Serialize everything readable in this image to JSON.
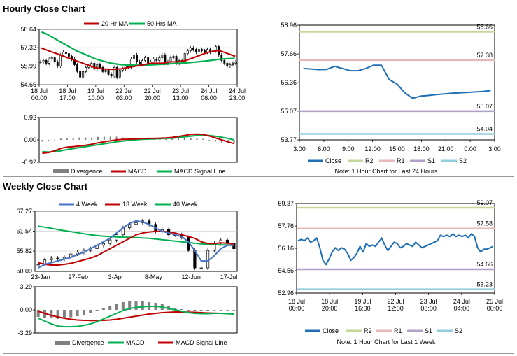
{
  "hourly": {
    "title": "Hourly Close Chart"
  },
  "weekly": {
    "title": "Weekly Close Chart"
  },
  "colors": {
    "ma20": "#c00000",
    "ma50": "#00b050",
    "w4": "#4472c4",
    "close": "#1f6fb5",
    "r2": "#c4d79b",
    "r1": "#e6b8b7",
    "s1": "#b1a0c7",
    "s2": "#92cddc",
    "div": "#808080"
  },
  "chart_data": [
    {
      "id": "hourly_main",
      "type": "candlestick",
      "legend": [
        "20 Hr MA",
        "50 Hrs MA"
      ],
      "ylim": [
        54.66,
        58.64
      ],
      "yticks": [
        "58.64",
        "57.32",
        "55.99",
        "54.66"
      ],
      "xticks": [
        [
          "18 Jul",
          "00:00"
        ],
        [
          "18 Jul",
          "17:00"
        ],
        [
          "19 Jul",
          "10:00"
        ],
        [
          "22 Jul",
          "03:00"
        ],
        [
          "22 Jul",
          "20:00"
        ],
        [
          "23 Jul",
          "13:00"
        ],
        [
          "24 Jul",
          "06:00"
        ],
        [
          "24 Jul",
          "23:00"
        ]
      ],
      "close": [
        56.3,
        56.4,
        56.2,
        56.5,
        56.6,
        56.3,
        56.0,
        56.8,
        57.0,
        56.9,
        56.7,
        56.5,
        56.1,
        55.6,
        55.2,
        55.6,
        55.9,
        56.0,
        56.2,
        55.8,
        56.1,
        55.9,
        55.6,
        55.7,
        55.4,
        55.3,
        55.9,
        55.2,
        55.7,
        55.8,
        56.0,
        55.9,
        56.5,
        56.8,
        56.3,
        56.1,
        56.4,
        56.6,
        56.2,
        56.3,
        56.5,
        56.4,
        56.6,
        56.8,
        56.2,
        56.3,
        56.6,
        56.7,
        56.2,
        56.4,
        56.3,
        56.9,
        57.1,
        57.3,
        57.2,
        57.0,
        57.2,
        57.1,
        57.0,
        57.2,
        57.0,
        57.1,
        57.4,
        56.8,
        56.4,
        56.2,
        56.0,
        56.1,
        56.2,
        56.3
      ],
      "ma20": [
        57.3,
        57.2,
        57.1,
        57.0,
        56.9,
        56.8,
        56.7,
        56.6,
        56.5,
        56.4,
        56.3,
        56.2,
        56.1,
        56.0,
        55.9,
        55.85,
        55.8,
        55.78,
        55.77,
        55.76,
        55.78,
        55.8,
        55.85,
        55.9,
        55.95,
        56.0,
        56.05,
        56.1,
        56.15,
        56.2,
        56.2,
        56.2,
        56.2,
        56.25,
        56.3,
        56.3,
        56.3,
        56.35,
        56.4,
        56.5,
        56.6,
        56.7,
        56.8,
        56.9,
        57.0,
        57.05,
        57.1,
        57.1,
        57.0,
        56.9,
        56.8,
        56.7
      ],
      "ma50": [
        58.45,
        58.3,
        58.1,
        57.9,
        57.7,
        57.5,
        57.3,
        57.1,
        56.95,
        56.8,
        56.65,
        56.5,
        56.4,
        56.3,
        56.2,
        56.15,
        56.1,
        56.08,
        56.07,
        56.06,
        56.06,
        56.07,
        56.08,
        56.1,
        56.12,
        56.14,
        56.16,
        56.18,
        56.2,
        56.22,
        56.25,
        56.28,
        56.32,
        56.36,
        56.4,
        56.45,
        56.5,
        56.52,
        56.54,
        56.55
      ]
    },
    {
      "id": "hourly_macd",
      "type": "macd",
      "legend": [
        "Divergence",
        "MACD",
        "MACD Signal Line"
      ],
      "ylim": [
        -0.92,
        0.92
      ],
      "yticks": [
        "0.92",
        "0.00",
        "-0.92"
      ],
      "macd": [
        -0.55,
        -0.52,
        -0.45,
        -0.35,
        -0.3,
        -0.28,
        -0.25,
        -0.22,
        -0.18,
        -0.12,
        -0.08,
        -0.04,
        0.0,
        0.02,
        0.03,
        0.04,
        0.05,
        0.06,
        0.06,
        0.07,
        0.08,
        0.1,
        0.14,
        0.18,
        0.22,
        0.24,
        0.22,
        0.16,
        0.08,
        0.0,
        -0.08,
        -0.15
      ],
      "signal": [
        -0.48,
        -0.5,
        -0.48,
        -0.45,
        -0.4,
        -0.36,
        -0.32,
        -0.28,
        -0.24,
        -0.2,
        -0.16,
        -0.12,
        -0.08,
        -0.05,
        -0.02,
        0.0,
        0.02,
        0.03,
        0.04,
        0.05,
        0.06,
        0.07,
        0.09,
        0.12,
        0.15,
        0.18,
        0.19,
        0.18,
        0.15,
        0.11,
        0.06,
        0.0
      ],
      "divergence": [
        -0.07,
        -0.04,
        0.01,
        0.05,
        0.08,
        0.09,
        0.1,
        0.1,
        0.1,
        0.12,
        0.13,
        0.13,
        0.13,
        0.1,
        0.07,
        0.06,
        0.05,
        0.04,
        0.03,
        0.03,
        0.03,
        0.04,
        0.06,
        0.07,
        0.08,
        0.07,
        0.04,
        -0.02,
        -0.07,
        -0.11,
        -0.14,
        -0.15
      ]
    },
    {
      "id": "hourly_levels",
      "type": "line",
      "legend": [
        "Close",
        "R2",
        "R1",
        "S1",
        "S2"
      ],
      "note": "Note: 1 Hour Chart for Last 24 Hours",
      "ylim": [
        53.77,
        58.96
      ],
      "yticks": [
        "58.96",
        "57.66",
        "56.36",
        "55.07",
        "53.77"
      ],
      "xticks": [
        "3:00",
        "6:00",
        "9:00",
        "12:00",
        "15:00",
        "18:00",
        "21:00",
        "0:00",
        "3:00"
      ],
      "levels": {
        "R2": 58.66,
        "R1": 57.38,
        "S1": 55.07,
        "S2": 54.04
      },
      "level_labels": {
        "R2": "58.66",
        "R1": "57.38",
        "S1": "55.07",
        "S2": "54.04"
      },
      "close": [
        57.0,
        56.98,
        56.95,
        56.96,
        57.1,
        57.0,
        56.9,
        56.9,
        57.0,
        57.15,
        57.15,
        56.5,
        56.3,
        55.9,
        55.65,
        55.75,
        55.78,
        55.82,
        55.85,
        55.88,
        55.9,
        55.92,
        55.94,
        55.96,
        56.0
      ]
    },
    {
      "id": "weekly_main",
      "type": "candlestick",
      "legend": [
        "4 Week",
        "13 Week",
        "40 Week"
      ],
      "ylim": [
        50.0,
        67.27
      ],
      "yticks": [
        "67.27",
        "61.54",
        "55.82",
        "50.09"
      ],
      "xticks": [
        "23-Jan",
        "27-Feb",
        "3-Apr",
        "8-May",
        "12-Jun",
        "17-Jul"
      ],
      "close": [
        52.0,
        53.3,
        53.8,
        53.5,
        54.0,
        55.0,
        55.5,
        56.0,
        56.5,
        57.5,
        58.0,
        59.0,
        60.5,
        62.5,
        63.5,
        64.0,
        64.5,
        63.5,
        61.5,
        62.0,
        60.5,
        60.5,
        59.8,
        56.0,
        51.0,
        51.0,
        56.0,
        58.0,
        59.0,
        58.0,
        56.5
      ],
      "w4": [
        51.0,
        52.0,
        52.5,
        53.0,
        53.5,
        54.0,
        54.8,
        55.5,
        56.5,
        57.5,
        58.5,
        59.5,
        61.0,
        62.5,
        63.8,
        64.5,
        64.2,
        63.5,
        62.5,
        61.5,
        61.0,
        60.5,
        60.0,
        58.5,
        56.0,
        53.0,
        53.0,
        54.5,
        56.5,
        57.5,
        57.5
      ],
      "w13": [
        52.5,
        52.0,
        51.8,
        51.8,
        52.0,
        52.3,
        52.8,
        53.3,
        53.8,
        54.5,
        55.5,
        56.5,
        57.5,
        58.5,
        59.5,
        60.5,
        61.0,
        61.3,
        61.5,
        61.5,
        61.3,
        61.0,
        60.5,
        60.0,
        59.5,
        58.5,
        58.0,
        58.0,
        58.2,
        58.1,
        57.8
      ],
      "w40": [
        63.0,
        62.7,
        62.4,
        62.0,
        61.7,
        61.4,
        61.1,
        60.8,
        60.5,
        60.3,
        60.1,
        60.0,
        59.9,
        59.8,
        59.8,
        59.7,
        59.6,
        59.5,
        59.3,
        59.1,
        58.9,
        58.7,
        58.5,
        58.3,
        58.1,
        57.9,
        57.8,
        57.7,
        57.6,
        57.6,
        57.5
      ]
    },
    {
      "id": "weekly_macd",
      "type": "macd",
      "legend": [
        "Divergence",
        "MACD",
        "MACD Signal Line"
      ],
      "ylim": [
        -3.29,
        3.29
      ],
      "yticks": [
        "3.29",
        "0.00",
        "-3.29"
      ],
      "macd": [
        -1.2,
        -1.6,
        -2.0,
        -2.3,
        -2.4,
        -2.4,
        -2.35,
        -2.2,
        -2.0,
        -1.7,
        -1.3,
        -0.9,
        -0.5,
        -0.1,
        0.2,
        0.35,
        0.45,
        0.5,
        0.5,
        0.4,
        0.2,
        0.0,
        -0.2,
        -0.4,
        -0.5,
        -0.55,
        -0.55,
        -0.5,
        -0.5,
        -0.55,
        -0.6
      ],
      "signal": [
        -0.2,
        -0.5,
        -0.8,
        -1.0,
        -1.2,
        -1.35,
        -1.45,
        -1.5,
        -1.52,
        -1.52,
        -1.5,
        -1.45,
        -1.35,
        -1.2,
        -1.05,
        -0.9,
        -0.75,
        -0.6,
        -0.5,
        -0.4,
        -0.35,
        -0.3,
        -0.3,
        -0.32,
        -0.35,
        -0.4,
        -0.45,
        -0.48,
        -0.5,
        -0.52,
        -0.55
      ],
      "divergence": [
        -1.0,
        -1.1,
        -1.2,
        -1.3,
        -1.2,
        -1.05,
        -0.9,
        -0.7,
        -0.5,
        -0.2,
        0.2,
        0.55,
        0.85,
        1.1,
        1.25,
        1.25,
        1.2,
        1.1,
        1.0,
        0.8,
        0.55,
        0.3,
        0.1,
        -0.1,
        -0.15,
        -0.15,
        -0.1,
        -0.05,
        0.0,
        -0.03,
        -0.05
      ]
    },
    {
      "id": "weekly_levels",
      "type": "line",
      "legend": [
        "Close",
        "R2",
        "R1",
        "S1",
        "S2"
      ],
      "note": "Note: 1 Hour Chart for Last 1 Week",
      "ylim": [
        52.96,
        59.37
      ],
      "yticks": [
        "59.37",
        "57.76",
        "56.16",
        "54.56",
        "52.96"
      ],
      "xticks": [
        [
          "18 Jul",
          "00:00"
        ],
        [
          "18 Jul",
          "20:00"
        ],
        [
          "19 Jul",
          "16:00"
        ],
        [
          "22 Jul",
          "12:00"
        ],
        [
          "23 Jul",
          "08:00"
        ],
        [
          "24 Jul",
          "04:00"
        ],
        [
          "25 Jul",
          "00:00"
        ]
      ],
      "levels": {
        "R2": 59.07,
        "R1": 57.58,
        "S1": 54.66,
        "S2": 53.23
      },
      "level_labels": {
        "R2": "59.07",
        "R1": "57.58",
        "S1": "54.66",
        "S2": "53.23"
      },
      "close": [
        56.7,
        56.8,
        56.7,
        56.9,
        56.6,
        56.7,
        56.9,
        56.2,
        55.3,
        55.0,
        55.4,
        55.9,
        56.2,
        56.0,
        56.2,
        56.1,
        55.8,
        55.3,
        55.5,
        55.8,
        56.3,
        55.9,
        56.5,
        56.3,
        56.4,
        56.3,
        56.6,
        56.9,
        56.4,
        56.0,
        56.3,
        56.6,
        56.5,
        56.2,
        56.3,
        56.5,
        56.4,
        56.3,
        56.6,
        56.4,
        56.2,
        56.3,
        56.4,
        56.5,
        56.6,
        56.7,
        57.1,
        57.0,
        57.1,
        57.0,
        57.2,
        57.0,
        57.1,
        57.0,
        57.1,
        56.9,
        57.2,
        57.0,
        56.2,
        55.9,
        56.1,
        56.1,
        56.2,
        56.3
      ]
    }
  ]
}
